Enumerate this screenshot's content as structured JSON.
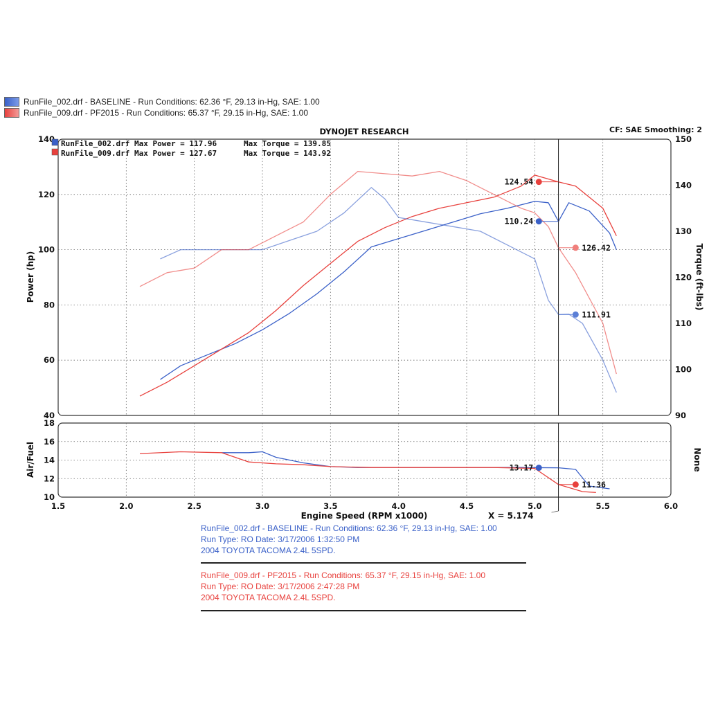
{
  "legend": [
    {
      "text": "RunFile_002.drf - BASELINE  - Run Conditions: 62.36 °F, 29.13 in-Hg, SAE: 1.00",
      "color": "#3a60c8"
    },
    {
      "text": "RunFile_009.drf - PF2015  - Run Conditions: 65.37 °F, 29.15 in-Hg, SAE: 1.00",
      "color": "#e8413d"
    }
  ],
  "header": {
    "title": "DYNOJET RESEARCH",
    "cf": "CF: SAE  Smoothing: 2"
  },
  "maxima": {
    "baseline_label": "RunFile_002.drf Max Power = 117.96",
    "baseline_torque": "Max Torque = 139.85",
    "pf_label": "RunFile_009.drf Max Power = 127.67",
    "pf_torque": "Max Torque = 143.92"
  },
  "info_blocks": [
    {
      "color": "#3a60c8",
      "lines": [
        "RunFile_002.drf - BASELINE  - Run Conditions: 62.36 °F, 29.13 in-Hg, SAE: 1.00",
        "Run Type: RO  Date: 3/17/2006 1:32:50 PM",
        "2004 TOYOTA TACOMA 2.4L 5SPD."
      ]
    },
    {
      "color": "#e8413d",
      "lines": [
        "RunFile_009.drf - PF2015  - Run Conditions: 65.37 °F, 29.15 in-Hg, SAE: 1.00",
        "Run Type: RO  Date: 3/17/2006 2:47:28 PM",
        "2004 TOYOTA TACOMA 2.4L 5SPD."
      ]
    }
  ],
  "chart_data": {
    "type": "line",
    "title": "DYNOJET RESEARCH",
    "xlabel": "Engine Speed (RPM x1000)",
    "xlim": [
      1.5,
      6.0
    ],
    "xticks": [
      "1.5",
      "2.0",
      "2.5",
      "3.0",
      "3.5",
      "4.0",
      "4.5",
      "5.0",
      "5.5",
      "6.0"
    ],
    "cursor": {
      "x": 5.174,
      "label": "X = 5.174"
    },
    "top_panel": {
      "ylabel_left": "Power (hp)",
      "ylim_left": [
        40,
        140
      ],
      "yticks_left": [
        "40",
        "60",
        "80",
        "100",
        "120",
        "140"
      ],
      "ylabel_right": "Torque (ft-lbs)",
      "ylim_right": [
        90,
        150
      ],
      "yticks_right": [
        "90",
        "100",
        "110",
        "120",
        "130",
        "140",
        "150"
      ],
      "series": [
        {
          "name": "BASELINE Power (hp)",
          "axis": "left",
          "color": "#3a60c8",
          "x": [
            2.25,
            2.4,
            2.6,
            2.8,
            3.0,
            3.2,
            3.4,
            3.6,
            3.8,
            4.0,
            4.2,
            4.4,
            4.6,
            4.8,
            5.0,
            5.1,
            5.174,
            5.25,
            5.4,
            5.55,
            5.6
          ],
          "y": [
            53,
            58,
            62,
            66,
            71,
            77,
            84,
            92,
            101,
            104,
            107,
            110,
            113,
            115,
            117.5,
            117,
            110.24,
            117,
            114,
            106,
            100
          ]
        },
        {
          "name": "PF2015 Power (hp)",
          "axis": "left",
          "color": "#e8413d",
          "x": [
            2.1,
            2.3,
            2.5,
            2.7,
            2.9,
            3.1,
            3.3,
            3.5,
            3.7,
            3.9,
            4.1,
            4.3,
            4.5,
            4.7,
            4.9,
            5.0,
            5.174,
            5.3,
            5.5,
            5.6
          ],
          "y": [
            47,
            52,
            58,
            64,
            70,
            78,
            87,
            95,
            103,
            108,
            112,
            115,
            117,
            119,
            123,
            127,
            124.54,
            123,
            115,
            105
          ]
        },
        {
          "name": "BASELINE Torque (ft-lbs)",
          "axis": "right",
          "color": "#3a60c8",
          "x": [
            2.25,
            2.4,
            2.6,
            2.8,
            3.0,
            3.2,
            3.4,
            3.6,
            3.8,
            3.9,
            4.0,
            4.2,
            4.4,
            4.6,
            4.8,
            5.0,
            5.1,
            5.174,
            5.25,
            5.35,
            5.5,
            5.6
          ],
          "y": [
            124,
            126,
            126,
            126,
            126,
            128,
            130,
            134,
            139.5,
            137,
            133,
            132,
            131,
            130,
            127,
            124,
            115,
            111.91,
            112,
            110,
            102,
            95
          ]
        },
        {
          "name": "PF2015 Torque (ft-lbs)",
          "axis": "right",
          "color": "#e8413d",
          "x": [
            2.1,
            2.3,
            2.5,
            2.7,
            2.9,
            3.1,
            3.3,
            3.5,
            3.7,
            3.9,
            4.1,
            4.3,
            4.5,
            4.7,
            4.9,
            5.0,
            5.1,
            5.174,
            5.3,
            5.5,
            5.6
          ],
          "y": [
            118,
            121,
            122,
            126,
            126,
            129,
            132,
            138,
            143,
            142.5,
            142,
            143,
            141,
            138,
            135,
            134,
            131,
            126.42,
            121,
            110,
            99
          ]
        }
      ]
    },
    "bottom_panel": {
      "ylabel_left": "Air/Fuel",
      "ylim": [
        10,
        18
      ],
      "yticks": [
        "10",
        "12",
        "14",
        "16",
        "18"
      ],
      "ylabel_right": "None",
      "series": [
        {
          "name": "BASELINE Air/Fuel",
          "color": "#3a60c8",
          "x": [
            2.7,
            2.9,
            3.0,
            3.1,
            3.3,
            3.5,
            3.7,
            4.0,
            4.3,
            4.6,
            4.9,
            5.174,
            5.3,
            5.4,
            5.55
          ],
          "y": [
            14.8,
            14.8,
            14.9,
            14.3,
            13.7,
            13.3,
            13.2,
            13.2,
            13.2,
            13.2,
            13.2,
            13.17,
            13.0,
            11.2,
            10.9
          ]
        },
        {
          "name": "PF2015 Air/Fuel",
          "color": "#e8413d",
          "x": [
            2.1,
            2.4,
            2.7,
            2.8,
            2.9,
            3.1,
            3.3,
            3.5,
            3.8,
            4.1,
            4.4,
            4.7,
            5.0,
            5.174,
            5.35,
            5.45
          ],
          "y": [
            14.7,
            14.9,
            14.8,
            14.3,
            13.8,
            13.6,
            13.5,
            13.3,
            13.2,
            13.2,
            13.2,
            13.2,
            13.1,
            11.36,
            10.6,
            10.5
          ]
        }
      ]
    },
    "cursor_readouts": [
      {
        "value": "124.54",
        "series": "PF2015 Power (hp)",
        "panel": "top",
        "axis": "left",
        "x": 5.03,
        "y": 124.54,
        "color": "#e8413d"
      },
      {
        "value": "110.24",
        "series": "BASELINE Power (hp)",
        "panel": "top",
        "axis": "left",
        "x": 5.03,
        "y": 110.24,
        "color": "#3a60c8"
      },
      {
        "value": "126.42",
        "series": "PF2015 Torque (ft-lbs)",
        "panel": "top",
        "axis": "right",
        "x": 5.3,
        "y": 126.42,
        "color": "#f07f7c"
      },
      {
        "value": "111.91",
        "series": "BASELINE Torque (ft-lbs)",
        "panel": "top",
        "axis": "right",
        "x": 5.3,
        "y": 111.91,
        "color": "#5b7fd6"
      },
      {
        "value": "13.17",
        "series": "BASELINE Air/Fuel",
        "panel": "bottom",
        "x": 5.03,
        "y": 13.17,
        "color": "#3a60c8"
      },
      {
        "value": "11.36",
        "series": "PF2015 Air/Fuel",
        "panel": "bottom",
        "x": 5.3,
        "y": 11.36,
        "color": "#e8413d"
      }
    ]
  }
}
